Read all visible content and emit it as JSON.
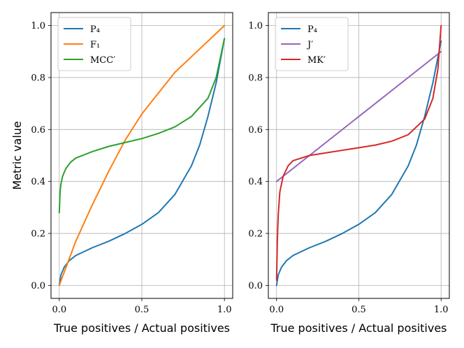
{
  "chart_data": [
    {
      "type": "line",
      "xlabel": "True positives / Actual positives",
      "ylabel": "Metric value",
      "xlim": [
        -0.05,
        1.05
      ],
      "ylim": [
        -0.05,
        1.05
      ],
      "xticks": [
        "0.0",
        "0.5",
        "1.0"
      ],
      "xtick_values": [
        0,
        0.5,
        1
      ],
      "yticks": [
        "0.0",
        "0.2",
        "0.4",
        "0.6",
        "0.8",
        "1.0"
      ],
      "ytick_values": [
        0,
        0.2,
        0.4,
        0.6,
        0.8,
        1.0
      ],
      "grid": true,
      "legend_position": "top-left",
      "series": [
        {
          "name": "P₄",
          "color": "#1f77b4",
          "x": [
            0,
            0.01,
            0.03,
            0.06,
            0.1,
            0.2,
            0.3,
            0.4,
            0.5,
            0.6,
            0.7,
            0.8,
            0.85,
            0.9,
            0.95,
            1.0
          ],
          "y": [
            0,
            0.04,
            0.07,
            0.095,
            0.115,
            0.145,
            0.17,
            0.2,
            0.235,
            0.28,
            0.35,
            0.46,
            0.54,
            0.65,
            0.78,
            0.95
          ]
        },
        {
          "name": "F₁",
          "color": "#ff7f0e",
          "x": [
            0,
            0.1,
            0.2,
            0.3,
            0.4,
            0.5,
            0.6,
            0.7,
            0.8,
            0.9,
            1.0
          ],
          "y": [
            0,
            0.17,
            0.31,
            0.44,
            0.56,
            0.66,
            0.74,
            0.82,
            0.88,
            0.94,
            1.0
          ]
        },
        {
          "name": "MCC′",
          "color": "#2ca02c",
          "x": [
            0,
            0.005,
            0.01,
            0.02,
            0.04,
            0.07,
            0.1,
            0.2,
            0.3,
            0.4,
            0.5,
            0.6,
            0.7,
            0.8,
            0.9,
            0.95,
            1.0
          ],
          "y": [
            0.28,
            0.36,
            0.39,
            0.42,
            0.45,
            0.475,
            0.49,
            0.515,
            0.535,
            0.55,
            0.565,
            0.585,
            0.61,
            0.65,
            0.72,
            0.8,
            0.95
          ]
        }
      ]
    },
    {
      "type": "line",
      "xlabel": "True positives / Actual positives",
      "ylabel": "",
      "xlim": [
        -0.05,
        1.05
      ],
      "ylim": [
        -0.05,
        1.05
      ],
      "xticks": [
        "0.0",
        "0.5",
        "1.0"
      ],
      "xtick_values": [
        0,
        0.5,
        1
      ],
      "yticks": [
        "0.0",
        "0.2",
        "0.4",
        "0.6",
        "0.8",
        "1.0"
      ],
      "ytick_values": [
        0,
        0.2,
        0.4,
        0.6,
        0.8,
        1.0
      ],
      "grid": true,
      "legend_position": "top-left",
      "series": [
        {
          "name": "P₄",
          "color": "#1f77b4",
          "x": [
            0,
            0.01,
            0.03,
            0.06,
            0.1,
            0.2,
            0.3,
            0.4,
            0.5,
            0.6,
            0.7,
            0.8,
            0.85,
            0.9,
            0.95,
            1.0
          ],
          "y": [
            0,
            0.04,
            0.07,
            0.095,
            0.115,
            0.145,
            0.17,
            0.2,
            0.235,
            0.28,
            0.35,
            0.46,
            0.54,
            0.65,
            0.78,
            0.94
          ]
        },
        {
          "name": "J′",
          "color": "#9467bd",
          "x": [
            0,
            1.0
          ],
          "y": [
            0.4,
            0.9
          ]
        },
        {
          "name": "MK′",
          "color": "#d62728",
          "x": [
            0,
            0.005,
            0.01,
            0.02,
            0.04,
            0.07,
            0.1,
            0.2,
            0.3,
            0.4,
            0.5,
            0.6,
            0.7,
            0.8,
            0.9,
            0.95,
            0.98,
            1.0
          ],
          "y": [
            0.02,
            0.18,
            0.27,
            0.36,
            0.42,
            0.46,
            0.48,
            0.5,
            0.51,
            0.52,
            0.53,
            0.54,
            0.555,
            0.58,
            0.64,
            0.72,
            0.83,
            1.0
          ]
        }
      ]
    }
  ]
}
